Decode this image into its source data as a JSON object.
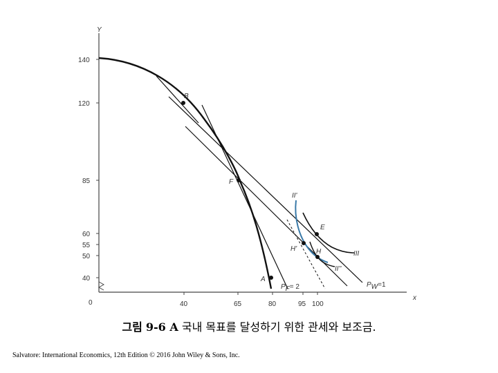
{
  "diagram": {
    "axes": {
      "y_label": "Y",
      "x_label": "x",
      "origin_label": "0",
      "y_ticks": [
        "140",
        "120",
        "85",
        "60",
        "55",
        "50",
        "40"
      ],
      "x_ticks": [
        "40",
        "65",
        "80",
        "95",
        "100"
      ]
    },
    "point_labels": {
      "B": "B",
      "F": "F",
      "E": "E",
      "H": "H",
      "H_prime": "H'",
      "A": "A"
    },
    "curve_labels": {
      "III": "III",
      "II_prime": "II'",
      "II_double_prime": "II''",
      "PF": "P",
      "PF_sub": "F",
      "PF_val": "= 2",
      "PW": "P",
      "PW_sub": "W",
      "PW_val": "=1"
    },
    "colors": {
      "curve": "#111111",
      "indifference_blue": "#3a7aa8"
    }
  },
  "caption": {
    "prefix": "그림",
    "number": "9-6 A",
    "text": "국내 목표를 달성하기 위한 관세와 보조금."
  },
  "credit": "Salvatore: International Economics, 12th Edition © 2016 John Wiley & Sons, Inc."
}
